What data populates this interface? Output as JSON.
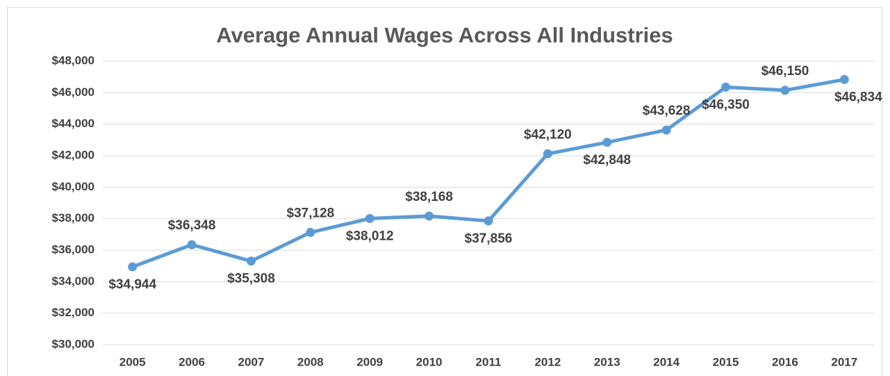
{
  "chart_data": {
    "type": "line",
    "title": "Average Annual Wages Across All Industries",
    "categories": [
      "2005",
      "2006",
      "2007",
      "2008",
      "2009",
      "2010",
      "2011",
      "2012",
      "2013",
      "2014",
      "2015",
      "2016",
      "2017"
    ],
    "series": [
      {
        "name": "Average Annual Wages",
        "color": "#5b9bd5",
        "values": [
          34944,
          36348,
          35308,
          37128,
          38012,
          38168,
          37856,
          42120,
          42848,
          43628,
          46350,
          46150,
          46834
        ],
        "value_labels": [
          "$34,944",
          "$36,348",
          "$35,308",
          "$37,128",
          "$38,012",
          "$38,168",
          "$37,856",
          "$42,120",
          "$42,848",
          "$43,628",
          "$46,350",
          "$46,150",
          "$46,834"
        ]
      }
    ],
    "ylim": [
      30000,
      48000
    ],
    "yticks": [
      {
        "value": 30000,
        "label": "$30,000"
      },
      {
        "value": 32000,
        "label": "$32,000"
      },
      {
        "value": 34000,
        "label": "$34,000"
      },
      {
        "value": 36000,
        "label": "$36,000"
      },
      {
        "value": 38000,
        "label": "$38,000"
      },
      {
        "value": 40000,
        "label": "$40,000"
      },
      {
        "value": 42000,
        "label": "$42,000"
      },
      {
        "value": 44000,
        "label": "$44,000"
      },
      {
        "value": 46000,
        "label": "$46,000"
      },
      {
        "value": 48000,
        "label": "$48,000"
      }
    ],
    "grid": true
  }
}
